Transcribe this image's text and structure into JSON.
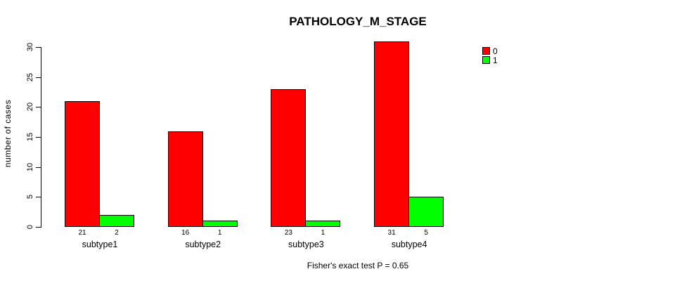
{
  "title": "PATHOLOGY_M_STAGE",
  "chart_data": {
    "type": "bar",
    "title": "PATHOLOGY_M_STAGE",
    "categories": [
      "subtype1",
      "subtype2",
      "subtype3",
      "subtype4"
    ],
    "series": [
      {
        "name": "0",
        "color": "#ff0000",
        "values": [
          21,
          16,
          23,
          31
        ]
      },
      {
        "name": "1",
        "color": "#00ff00",
        "values": [
          2,
          1,
          1,
          5
        ]
      }
    ],
    "bar_value_labels": [
      [
        21,
        2
      ],
      [
        16,
        1
      ],
      [
        23,
        1
      ],
      [
        31,
        5
      ]
    ],
    "xlabel": "",
    "ylabel": "number of cases",
    "ylim": [
      0,
      30
    ],
    "yticks": [
      0,
      5,
      10,
      15,
      20,
      25,
      30
    ],
    "grid": false,
    "legend_position": "top-right",
    "legend": [
      {
        "label": "0",
        "color": "#ff0000"
      },
      {
        "label": "1",
        "color": "#00ff00"
      }
    ],
    "annotation": "Fisher's exact test P = 0.65"
  }
}
